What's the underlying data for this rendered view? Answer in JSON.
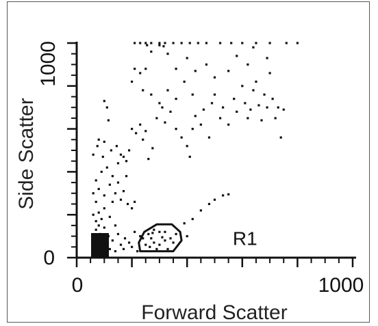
{
  "chart_data": {
    "type": "scatter",
    "xlabel": "Forward Scatter",
    "ylabel": "Side Scatter",
    "xlim": [
      0,
      1000
    ],
    "ylim": [
      0,
      1000
    ],
    "x_tick_labels": [
      "0",
      "1000"
    ],
    "y_tick_labels": [
      "0",
      "1000"
    ],
    "grid": false,
    "gate": {
      "label": "R1",
      "polygon": [
        [
          230,
          30
        ],
        [
          350,
          30
        ],
        [
          380,
          80
        ],
        [
          375,
          120
        ],
        [
          345,
          155
        ],
        [
          290,
          155
        ],
        [
          245,
          120
        ],
        [
          225,
          70
        ]
      ],
      "label_position": [
        610,
        90
      ]
    },
    "series": [
      {
        "points": [
          [
            60,
            20
          ],
          [
            70,
            40
          ],
          [
            65,
            60
          ],
          [
            80,
            30
          ],
          [
            75,
            90
          ],
          [
            90,
            50
          ],
          [
            85,
            110
          ],
          [
            95,
            70
          ],
          [
            70,
            130
          ],
          [
            100,
            20
          ],
          [
            110,
            60
          ],
          [
            60,
            100
          ],
          [
            80,
            150
          ],
          [
            90,
            180
          ],
          [
            100,
            140
          ],
          [
            120,
            40
          ],
          [
            130,
            80
          ],
          [
            140,
            30
          ],
          [
            115,
            100
          ],
          [
            70,
            170
          ],
          [
            60,
            200
          ],
          [
            80,
            210
          ],
          [
            100,
            230
          ],
          [
            120,
            190
          ],
          [
            140,
            150
          ],
          [
            150,
            110
          ],
          [
            160,
            60
          ],
          [
            170,
            40
          ],
          [
            175,
            90
          ],
          [
            190,
            70
          ],
          [
            200,
            50
          ],
          [
            210,
            120
          ],
          [
            220,
            30
          ],
          [
            230,
            100
          ],
          [
            60,
            300
          ],
          [
            70,
            260
          ],
          [
            80,
            320
          ],
          [
            100,
            290
          ],
          [
            120,
            340
          ],
          [
            130,
            260
          ],
          [
            140,
            300
          ],
          [
            150,
            350
          ],
          [
            160,
            270
          ],
          [
            170,
            310
          ],
          [
            180,
            380
          ],
          [
            185,
            250
          ],
          [
            200,
            230
          ],
          [
            210,
            260
          ],
          [
            70,
            360
          ],
          [
            90,
            400
          ],
          [
            110,
            420
          ],
          [
            130,
            380
          ],
          [
            150,
            440
          ],
          [
            60,
            480
          ],
          [
            75,
            520
          ],
          [
            100,
            540
          ],
          [
            125,
            500
          ],
          [
            145,
            520
          ],
          [
            160,
            480
          ],
          [
            170,
            470
          ],
          [
            180,
            450
          ],
          [
            190,
            500
          ],
          [
            200,
            600
          ],
          [
            215,
            580
          ],
          [
            230,
            620
          ],
          [
            250,
            590
          ],
          [
            240,
            550
          ],
          [
            260,
            460
          ],
          [
            275,
            510
          ],
          [
            290,
            650
          ],
          [
            310,
            700
          ],
          [
            320,
            630
          ],
          [
            340,
            680
          ],
          [
            360,
            600
          ],
          [
            380,
            560
          ],
          [
            400,
            520
          ],
          [
            410,
            470
          ],
          [
            420,
            600
          ],
          [
            430,
            660
          ],
          [
            450,
            620
          ],
          [
            460,
            690
          ],
          [
            480,
            560
          ],
          [
            490,
            720
          ],
          [
            500,
            760
          ],
          [
            520,
            650
          ],
          [
            530,
            700
          ],
          [
            550,
            620
          ],
          [
            570,
            740
          ],
          [
            580,
            680
          ],
          [
            600,
            800
          ],
          [
            610,
            720
          ],
          [
            620,
            650
          ],
          [
            630,
            690
          ],
          [
            640,
            780
          ],
          [
            650,
            820
          ],
          [
            660,
            710
          ],
          [
            670,
            640
          ],
          [
            680,
            760
          ],
          [
            690,
            700
          ],
          [
            700,
            860
          ],
          [
            710,
            740
          ],
          [
            720,
            650
          ],
          [
            730,
            700
          ],
          [
            740,
            560
          ],
          [
            750,
            690
          ],
          [
            690,
            930
          ],
          [
            640,
            980
          ],
          [
            580,
            940
          ],
          [
            620,
            900
          ],
          [
            550,
            870
          ],
          [
            500,
            840
          ],
          [
            470,
            900
          ],
          [
            430,
            870
          ],
          [
            400,
            930
          ],
          [
            360,
            880
          ],
          [
            330,
            950
          ],
          [
            300,
            990
          ],
          [
            270,
            960
          ],
          [
            250,
            880
          ],
          [
            230,
            860
          ],
          [
            210,
            880
          ],
          [
            240,
            780
          ],
          [
            270,
            760
          ],
          [
            300,
            720
          ],
          [
            330,
            780
          ],
          [
            360,
            740
          ],
          [
            390,
            820
          ],
          [
            420,
            760
          ],
          [
            200,
            820
          ],
          [
            100,
            730
          ],
          [
            110,
            700
          ],
          [
            115,
            640
          ],
          [
            80,
            550
          ],
          [
            95,
            470
          ],
          [
            210,
            1000
          ],
          [
            230,
            1000
          ],
          [
            250,
            1000
          ],
          [
            270,
            1000
          ],
          [
            300,
            1000
          ],
          [
            320,
            1000
          ],
          [
            350,
            1000
          ],
          [
            380,
            1000
          ],
          [
            410,
            1000
          ],
          [
            440,
            1000
          ],
          [
            470,
            1000
          ],
          [
            520,
            1000
          ],
          [
            560,
            1000
          ],
          [
            600,
            1000
          ],
          [
            650,
            1000
          ],
          [
            700,
            1000
          ],
          [
            760,
            1000
          ],
          [
            800,
            1000
          ],
          [
            255,
            990
          ],
          [
            315,
            985
          ],
          [
            420,
            180
          ],
          [
            450,
            220
          ],
          [
            480,
            250
          ],
          [
            500,
            270
          ],
          [
            530,
            290
          ],
          [
            550,
            295
          ],
          [
            390,
            160
          ],
          [
            400,
            100
          ],
          [
            360,
            110
          ],
          [
            300,
            60
          ],
          [
            280,
            130
          ],
          [
            320,
            120
          ],
          [
            270,
            90
          ],
          [
            250,
            60
          ],
          [
            340,
            90
          ],
          [
            290,
            40
          ],
          [
            310,
            95
          ],
          [
            260,
            110
          ],
          [
            330,
            40
          ],
          [
            280,
            70
          ],
          [
            300,
            120
          ],
          [
            240,
            90
          ],
          [
            265,
            50
          ],
          [
            350,
            70
          ],
          [
            320,
            80
          ],
          [
            275,
            115
          ]
        ]
      }
    ]
  }
}
